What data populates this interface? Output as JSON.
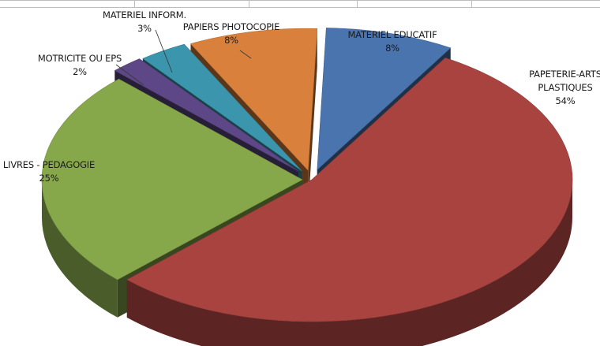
{
  "chart_data": {
    "type": "pie",
    "title": "",
    "slices": [
      {
        "label": "MATERIEL EDUCATIF",
        "value": 8,
        "value_label": "8%",
        "color": "#4a74ae"
      },
      {
        "label_lines": [
          "PAPETERIE-ARTS",
          "PLASTIQUES"
        ],
        "value": 54,
        "value_label": "54%",
        "color": "#a84340"
      },
      {
        "label": "LIVRES - PEDAGOGIE",
        "value": 25,
        "value_label": "25%",
        "color": "#86a84a"
      },
      {
        "label": "MOTRICITE OU EPS",
        "value": 2,
        "value_label": "2%",
        "color": "#5e4786"
      },
      {
        "label": "MATERIEL INFORM.",
        "value": 3,
        "value_label": "3%",
        "color": "#3b95ad"
      },
      {
        "label": "PAPIERS PHOTOCOPIE",
        "value": 8,
        "value_label": "8%",
        "color": "#d9813c"
      }
    ]
  }
}
